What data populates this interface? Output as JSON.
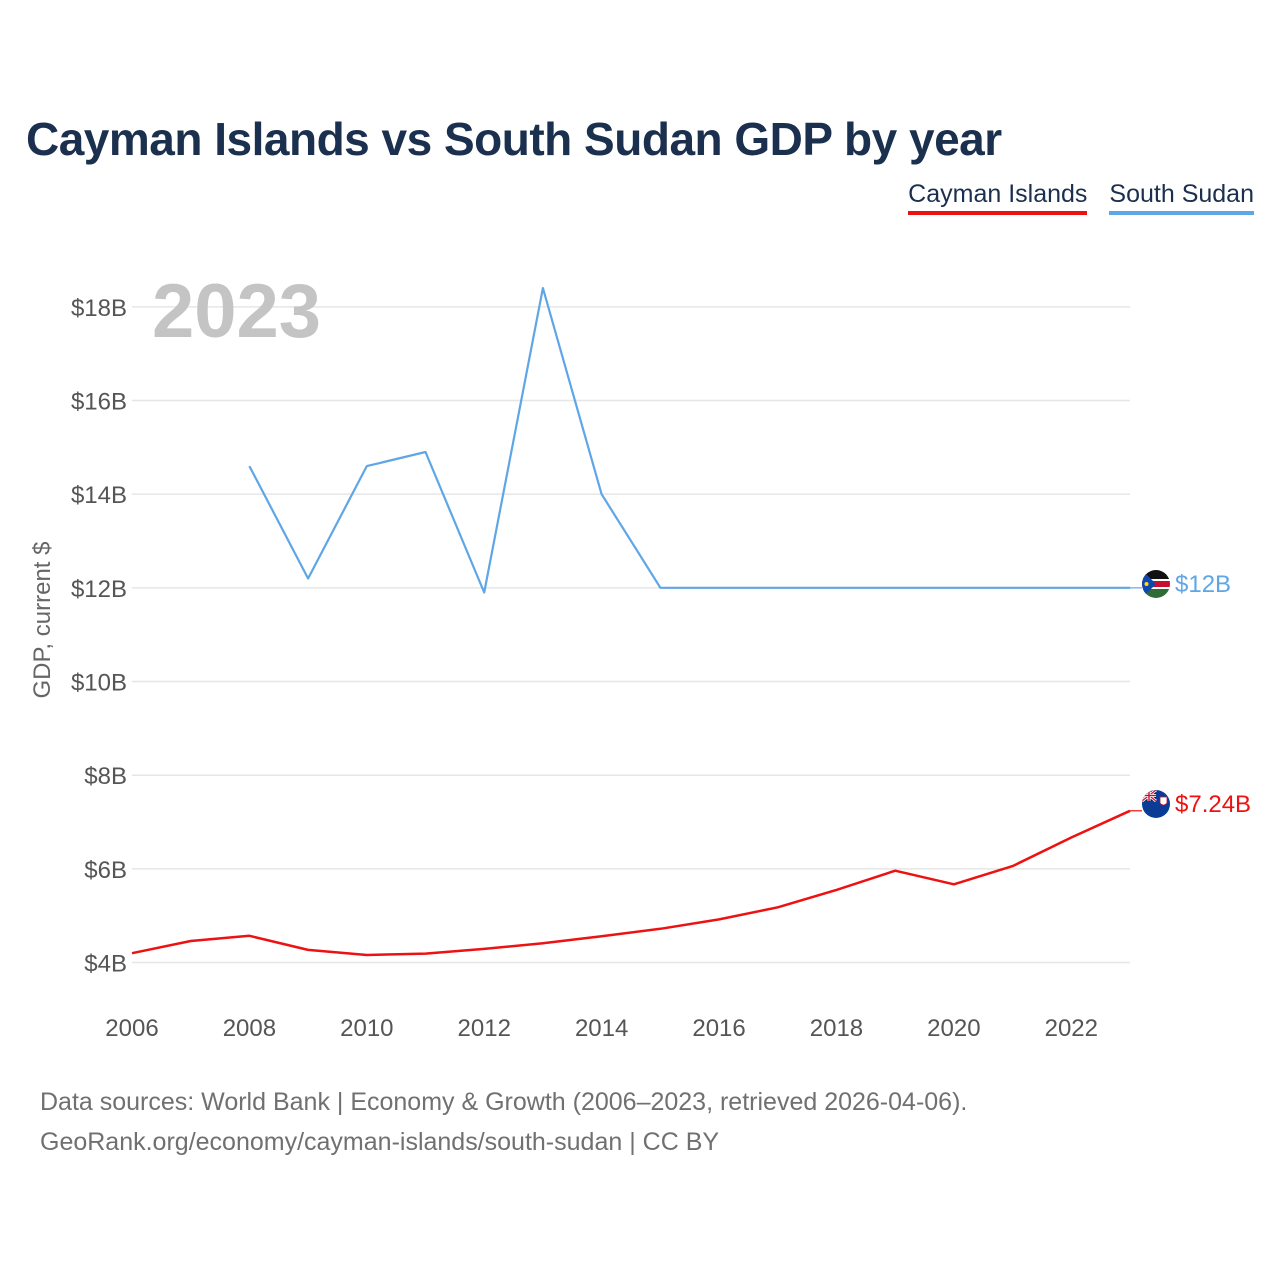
{
  "title": "Cayman Islands vs South Sudan GDP by year",
  "colors": {
    "cayman": "#ee1111",
    "southSudan": "#5ea6e6",
    "grid": "#e6e6e6",
    "year": "#c4c4c4"
  },
  "chart_data": {
    "type": "line",
    "title": "Cayman Islands vs South Sudan GDP by year",
    "ylabel": "GDP, current $",
    "xlabel": "",
    "year_label": "2023",
    "xlim": [
      2006,
      2023
    ],
    "ylim": [
      3.2,
      19
    ],
    "x_ticks": [
      2006,
      2008,
      2010,
      2012,
      2014,
      2016,
      2018,
      2020,
      2022
    ],
    "y_ticks": [
      {
        "value": 4,
        "label": "$4B"
      },
      {
        "value": 6,
        "label": "$6B"
      },
      {
        "value": 8,
        "label": "$8B"
      },
      {
        "value": 10,
        "label": "$10B"
      },
      {
        "value": 12,
        "label": "$12B"
      },
      {
        "value": 14,
        "label": "$14B"
      },
      {
        "value": 16,
        "label": "$16B"
      },
      {
        "value": 18,
        "label": "$18B"
      }
    ],
    "series": [
      {
        "name": "Cayman Islands",
        "key": "cayman",
        "color": "#ee1111",
        "end_label": "$7.24B",
        "flag_icon": "cayman-islands-flag-icon",
        "x": [
          2006,
          2007,
          2008,
          2009,
          2010,
          2011,
          2012,
          2013,
          2014,
          2015,
          2016,
          2017,
          2018,
          2019,
          2020,
          2021,
          2022,
          2023
        ],
        "values": [
          4.2,
          4.46,
          4.57,
          4.27,
          4.16,
          4.19,
          4.29,
          4.41,
          4.56,
          4.72,
          4.92,
          5.18,
          5.55,
          5.96,
          5.67,
          6.06,
          6.67,
          7.24
        ]
      },
      {
        "name": "South Sudan",
        "key": "southSudan",
        "color": "#5ea6e6",
        "end_label": "$12B",
        "flag_icon": "south-sudan-flag-icon",
        "x": [
          2008,
          2009,
          2010,
          2011,
          2012,
          2013,
          2014,
          2015,
          2016,
          2017,
          2018,
          2019,
          2020,
          2021,
          2022,
          2023
        ],
        "values": [
          14.6,
          12.2,
          14.6,
          14.9,
          11.9,
          18.4,
          14.0,
          12.0,
          12.0,
          12.0,
          12.0,
          12.0,
          12.0,
          12.0,
          12.0,
          12.0
        ]
      }
    ]
  },
  "footer": {
    "line1": "Data sources: World Bank | Economy & Growth (2006–2023, retrieved 2026-04-06).",
    "line2": "GeoRank.org/economy/cayman-islands/south-sudan | CC BY"
  }
}
